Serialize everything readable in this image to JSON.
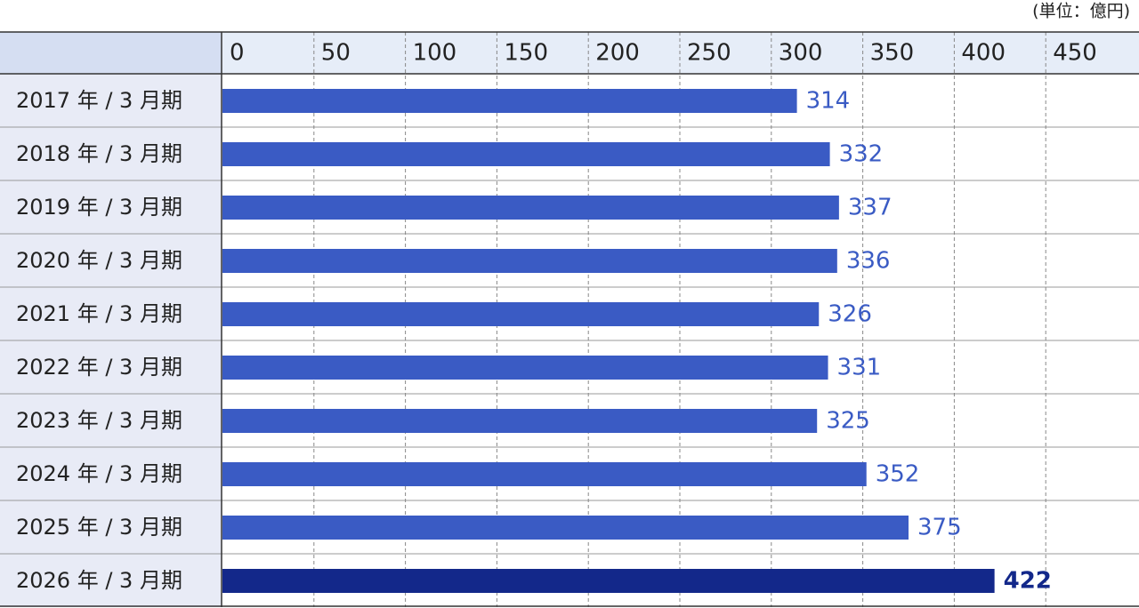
{
  "chart_data": {
    "type": "bar",
    "unit_label": "(単位：億円)",
    "categories": [
      "2017 年 / 3 月期",
      "2018 年 / 3 月期",
      "2019 年 / 3 月期",
      "2020 年 / 3 月期",
      "2021 年 / 3 月期",
      "2022 年 / 3 月期",
      "2023 年 / 3 月期",
      "2024 年 / 3 月期",
      "2025 年 / 3 月期",
      "2026 年 / 3 月期"
    ],
    "values": [
      314,
      332,
      337,
      336,
      326,
      331,
      325,
      352,
      375,
      422
    ],
    "colors": [
      "#3a5bc4",
      "#3a5bc4",
      "#3a5bc4",
      "#3a5bc4",
      "#3a5bc4",
      "#3a5bc4",
      "#3a5bc4",
      "#3a5bc4",
      "#3a5bc4",
      "#13288a"
    ],
    "xlim": [
      0,
      500
    ],
    "xticks": [
      0,
      50,
      100,
      150,
      200,
      250,
      300,
      350,
      400,
      450
    ],
    "grid": true
  }
}
